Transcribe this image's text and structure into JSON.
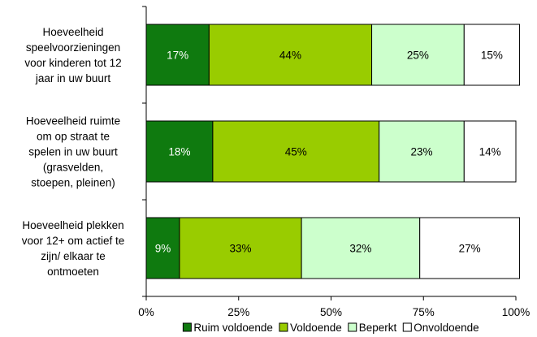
{
  "chart_data": {
    "type": "bar",
    "orientation": "horizontal",
    "stacked": true,
    "title": "",
    "xlabel": "",
    "ylabel": "",
    "xlim": [
      0,
      100
    ],
    "x_ticks": [
      "0%",
      "25%",
      "50%",
      "75%",
      "100%"
    ],
    "categories": [
      [
        "Hoeveelheid",
        "speelvoorzieningen",
        "voor kinderen tot 12",
        "jaar in uw buurt"
      ],
      [
        "Hoeveelheid ruimte",
        "om op straat te",
        "spelen in uw buurt",
        "(grasvelden,",
        "stoepen, pleinen)"
      ],
      [
        "Hoeveelheid plekken",
        "voor 12+ om actief te",
        "zijn/ elkaar te",
        "ontmoeten"
      ]
    ],
    "series": [
      {
        "name": "Ruim voldoende",
        "color": "#0f7a0f",
        "label_color": "#ffffff",
        "values": [
          17,
          18,
          9
        ],
        "labels": [
          "17%",
          "18%",
          "9%"
        ]
      },
      {
        "name": "Voldoende",
        "color": "#99cc00",
        "label_color": "#000000",
        "values": [
          44,
          45,
          33
        ],
        "labels": [
          "44%",
          "45%",
          "33%"
        ]
      },
      {
        "name": "Beperkt",
        "color": "#ccffcc",
        "label_color": "#000000",
        "values": [
          25,
          23,
          32
        ],
        "labels": [
          "25%",
          "23%",
          "32%"
        ]
      },
      {
        "name": "Onvoldoende",
        "color": "#ffffff",
        "label_color": "#000000",
        "values": [
          15,
          14,
          27
        ],
        "labels": [
          "15%",
          "14%",
          "27%"
        ]
      }
    ],
    "grid": false,
    "legend_position": "bottom"
  }
}
